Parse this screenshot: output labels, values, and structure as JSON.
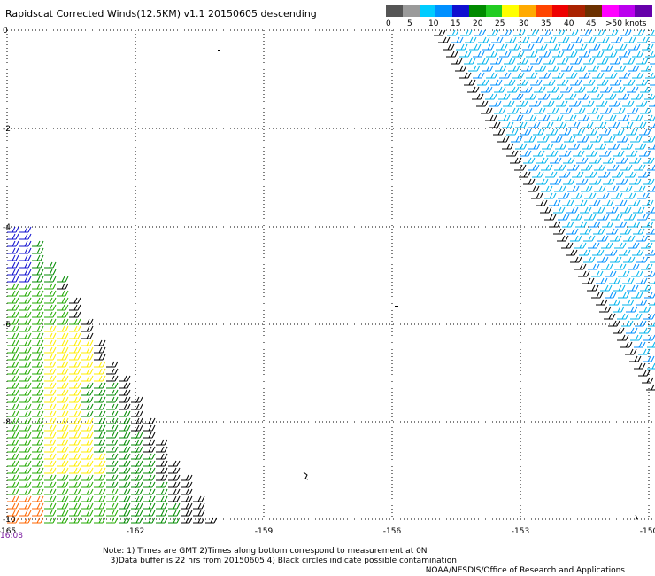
{
  "title": "Rapidscat Corrected Winds(12.5KM) v1.1 20150605 descending",
  "legend": {
    "colors": [
      "#555555",
      "#9a9a9a",
      "#00ccff",
      "#0090ff",
      "#1010d0",
      "#008a00",
      "#22cc22",
      "#ffff00",
      "#ffaa00",
      "#ff4400",
      "#ee0000",
      "#aa2200",
      "#6b3000",
      "#ff00ff",
      "#bb00ee",
      "#6600aa"
    ],
    "labels": [
      "0",
      "5",
      "10",
      "15",
      "20",
      "25",
      "30",
      "35",
      "40",
      "45",
      ">50 knots"
    ]
  },
  "axes": {
    "x_ticks": [
      "-165",
      "-162",
      "-159",
      "-156",
      "-153",
      "-150"
    ],
    "y_ticks": [
      "0",
      "-2",
      "-4",
      "-6",
      "-8",
      "-10"
    ]
  },
  "time_label": "16:08",
  "notes": "Note: 1) Times are GMT 2)Times along bottom correspond to measurement at 0N\n   3)Data buffer is 22 hrs from 20150605 4) Black circles indicate possible contamination",
  "credit": "NOAA/NESDIS/Office of Research and Applications"
}
